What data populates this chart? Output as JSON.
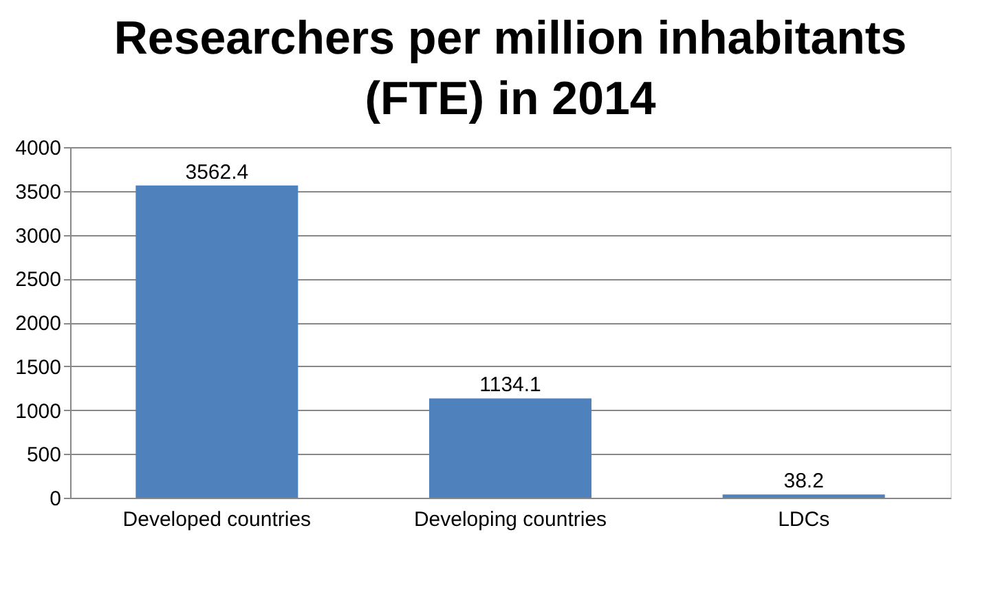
{
  "chart_data": {
    "type": "bar",
    "title": "Researchers per million inhabitants (FTE) in 2014",
    "categories": [
      "Developed countries",
      "Developing countries",
      "LDCs"
    ],
    "values": [
      3562.4,
      1134.1,
      38.2
    ],
    "color": "#4f81bd",
    "ylim": [
      0,
      4000
    ],
    "yticks": [
      0,
      500,
      1000,
      1500,
      2000,
      2500,
      3000,
      3500,
      4000
    ],
    "grid": "y",
    "data_labels": true
  }
}
